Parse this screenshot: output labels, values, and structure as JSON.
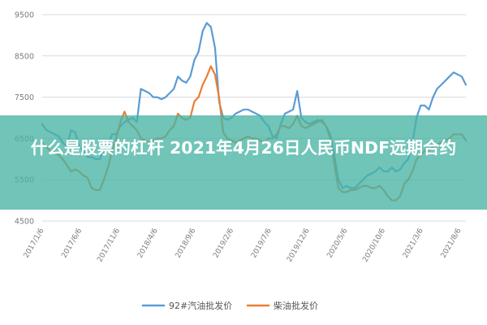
{
  "banner": {
    "title": "什么是股票的杠杆 2021年4月26日人民币NDF远期合约"
  },
  "colors": {
    "series_blue": "#5b9bd5",
    "series_orange": "#ed7d31",
    "grid": "#d9d9d9",
    "banner_bg": "#3fae9e"
  },
  "chart_data": {
    "type": "line",
    "ylim": [
      4500,
      9500
    ],
    "yticks": [
      4500,
      5500,
      6500,
      7500,
      8500,
      9500
    ],
    "x_tick_labels": [
      "2017/1/6",
      "2017/6/6",
      "2017/11/6",
      "2018/4/6",
      "2018/9/6",
      "2019/2/6",
      "2019/7/6",
      "2019/12/6",
      "2020/5/6",
      "2020/10/6",
      "2021/3/6",
      "2021/8/6"
    ],
    "grid": true,
    "legend_position": "bottom",
    "series": [
      {
        "name": "92#汽油批发价",
        "color": "#5b9bd5",
        "values": [
          6850,
          6700,
          6650,
          6600,
          6550,
          6400,
          6300,
          6700,
          6650,
          6300,
          6200,
          6050,
          6050,
          6000,
          6000,
          6200,
          6350,
          6600,
          6600,
          6800,
          6900,
          6950,
          7000,
          6900,
          7700,
          7650,
          7600,
          7500,
          7500,
          7450,
          7500,
          7600,
          7700,
          8000,
          7900,
          7850,
          8000,
          8400,
          8600,
          9100,
          9300,
          9200,
          8700,
          7400,
          7000,
          6950,
          7000,
          7100,
          7150,
          7200,
          7200,
          7150,
          7100,
          7050,
          6900,
          6800,
          6550,
          6500,
          6850,
          7100,
          7150,
          7200,
          7650,
          7000,
          6900,
          6850,
          6900,
          6950,
          6900,
          6800,
          6600,
          6100,
          5500,
          5300,
          5350,
          5300,
          5300,
          5400,
          5500,
          5600,
          5650,
          5700,
          5800,
          5700,
          5700,
          5800,
          5700,
          5750,
          5900,
          6000,
          6400,
          7000,
          7300,
          7300,
          7200,
          7500,
          7700,
          7800,
          7900,
          8000,
          8100,
          8050,
          8000,
          7800
        ]
      },
      {
        "name": "柴油批发价",
        "color": "#ed7d31",
        "values": [
          6400,
          6300,
          6200,
          6150,
          6100,
          6000,
          5850,
          5700,
          5750,
          5700,
          5600,
          5550,
          5300,
          5250,
          5250,
          5500,
          5800,
          6200,
          6500,
          6900,
          7150,
          6900,
          6800,
          6700,
          6500,
          6450,
          6400,
          6450,
          6500,
          6500,
          6550,
          6700,
          6800,
          7100,
          7000,
          6950,
          7000,
          7400,
          7500,
          7800,
          8000,
          8250,
          8050,
          7500,
          6650,
          6500,
          6450,
          6400,
          6450,
          6500,
          6550,
          6500,
          6500,
          6450,
          6400,
          6500,
          6500,
          6600,
          6800,
          6800,
          6750,
          6850,
          7050,
          6800,
          6750,
          6800,
          6850,
          6900,
          6950,
          6800,
          6500,
          5900,
          5300,
          5200,
          5200,
          5250,
          5250,
          5300,
          5350,
          5350,
          5300,
          5300,
          5350,
          5250,
          5100,
          5000,
          5000,
          5100,
          5400,
          5500,
          5700,
          6000,
          6100,
          6200,
          6200,
          6300,
          6350,
          6400,
          6450,
          6500,
          6600,
          6600,
          6600,
          6450
        ]
      }
    ]
  }
}
